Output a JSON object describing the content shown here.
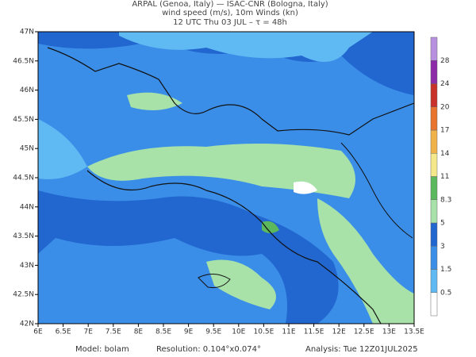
{
  "header": {
    "line1": "ARPAL (Genoa, Italy)  —  ISAC-CNR (Bologna, Italy)",
    "line2": "wind speed (m/s), 10m Winds (kn)",
    "line3": "12 UTC Thu 03 JUL  –  τ = 48h"
  },
  "map": {
    "lon_labels": [
      "6E",
      "6.5E",
      "7E",
      "7.5E",
      "8E",
      "8.5E",
      "9E",
      "9.5E",
      "10E",
      "10.5E",
      "11E",
      "11.5E",
      "12E",
      "12.5E",
      "13E",
      "13.5E"
    ],
    "lat_labels": [
      "42N",
      "42.5N",
      "43N",
      "43.5N",
      "44N",
      "44.5N",
      "45N",
      "45.5N",
      "46N",
      "46.5N",
      "47N"
    ]
  },
  "colorbar": {
    "labels": [
      "0.5",
      "1.5",
      "3",
      "5",
      "8.3",
      "11",
      "14",
      "17",
      "20",
      "24",
      "28"
    ],
    "colors": [
      "#ffffff",
      "#5fb9f2",
      "#3b8ee8",
      "#2266d0",
      "#a8e2a8",
      "#5cb85c",
      "#f5e88a",
      "#f2b24a",
      "#e8742e",
      "#c8302a",
      "#8c2aa8",
      "#b890e0"
    ]
  },
  "footer": {
    "model": "Model: bolam",
    "resolution": "Resolution: 0.104°x0.074°",
    "analysis": "Analysis: Tue 12Z01JUL2025"
  }
}
